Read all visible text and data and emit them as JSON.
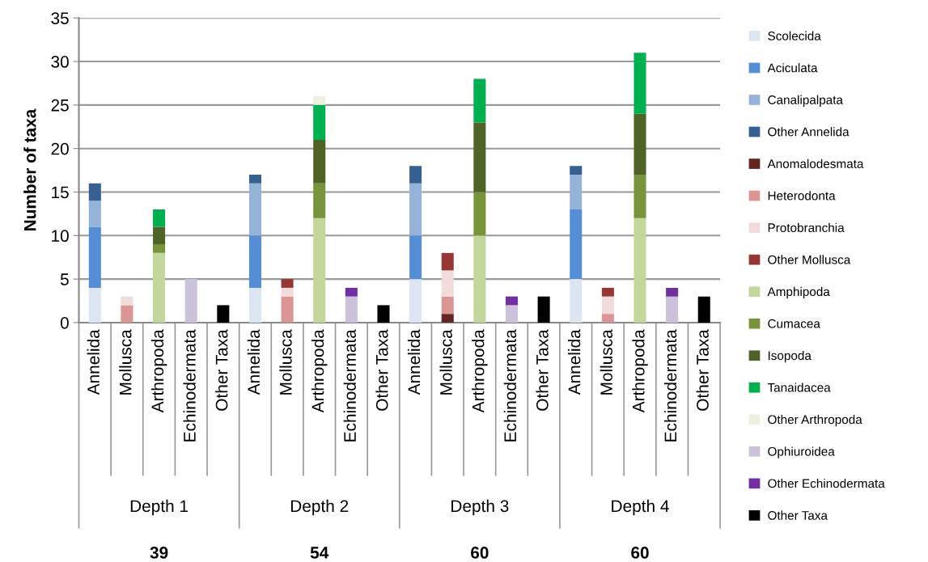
{
  "chart_data": {
    "type": "bar",
    "stacked": true,
    "ylabel": "Number of taxa",
    "categories": [
      "Annelida",
      "Mollusca",
      "Arthropoda",
      "Echinodermata",
      "Other Taxa",
      "Annelida",
      "Mollusca",
      "Arthropoda",
      "Echinodermata",
      "Other Taxa",
      "Annelida",
      "Mollusca",
      "Arthropoda",
      "Echinodermata",
      "Other Taxa",
      "Annelida",
      "Mollusca",
      "Arthropoda",
      "Echinodermata",
      "Other Taxa"
    ],
    "series": [
      {
        "name": "Scolecida",
        "color": "#dce6f2",
        "values": [
          4,
          null,
          null,
          null,
          null,
          4,
          null,
          null,
          null,
          null,
          5,
          null,
          null,
          null,
          null,
          5,
          null,
          null,
          null,
          null
        ]
      },
      {
        "name": "Aciculata",
        "color": "#558ed5",
        "values": [
          7,
          null,
          null,
          null,
          null,
          6,
          null,
          null,
          null,
          null,
          5,
          null,
          null,
          null,
          null,
          8,
          null,
          null,
          null,
          null
        ]
      },
      {
        "name": "Canalipalpata",
        "color": "#95b3d7",
        "values": [
          3,
          null,
          null,
          null,
          null,
          6,
          null,
          null,
          null,
          null,
          6,
          null,
          null,
          null,
          null,
          4,
          null,
          null,
          null,
          null
        ]
      },
      {
        "name": "Other Annelida",
        "color": "#376092",
        "values": [
          2,
          null,
          null,
          null,
          null,
          1,
          null,
          null,
          null,
          null,
          2,
          null,
          null,
          null,
          null,
          1,
          null,
          null,
          null,
          null
        ]
      },
      {
        "name": "Anomalodesmata",
        "color": "#632523",
        "values": [
          null,
          null,
          null,
          null,
          null,
          null,
          null,
          null,
          null,
          null,
          null,
          1,
          null,
          null,
          null,
          null,
          null,
          null,
          null,
          null
        ]
      },
      {
        "name": "Heterodonta",
        "color": "#d99694",
        "values": [
          null,
          2,
          null,
          null,
          null,
          null,
          3,
          null,
          null,
          null,
          null,
          2,
          null,
          null,
          null,
          null,
          1,
          null,
          null,
          null
        ]
      },
      {
        "name": "Protobranchia",
        "color": "#f2dcdb",
        "values": [
          null,
          1,
          null,
          null,
          null,
          null,
          1,
          null,
          null,
          null,
          null,
          3,
          null,
          null,
          null,
          null,
          2,
          null,
          null,
          null
        ]
      },
      {
        "name": "Other Mollusca",
        "color": "#953735",
        "values": [
          null,
          null,
          null,
          null,
          null,
          null,
          1,
          null,
          null,
          null,
          null,
          2,
          null,
          null,
          null,
          null,
          1,
          null,
          null,
          null
        ]
      },
      {
        "name": "Amphipoda",
        "color": "#c3d69b",
        "values": [
          null,
          null,
          8,
          null,
          null,
          null,
          null,
          12,
          null,
          null,
          null,
          null,
          10,
          null,
          null,
          null,
          null,
          12,
          null,
          null
        ]
      },
      {
        "name": "Cumacea",
        "color": "#77933c",
        "values": [
          null,
          null,
          1,
          null,
          null,
          null,
          null,
          4,
          null,
          null,
          null,
          null,
          5,
          null,
          null,
          null,
          null,
          5,
          null,
          null
        ]
      },
      {
        "name": "Isopoda",
        "color": "#4f6228",
        "values": [
          null,
          null,
          2,
          null,
          null,
          null,
          null,
          5,
          null,
          null,
          null,
          null,
          8,
          null,
          null,
          null,
          null,
          7,
          null,
          null
        ]
      },
      {
        "name": "Tanaidacea",
        "color": "#00b050",
        "values": [
          null,
          null,
          2,
          null,
          null,
          null,
          null,
          4,
          null,
          null,
          null,
          null,
          5,
          null,
          null,
          null,
          null,
          7,
          null,
          null
        ]
      },
      {
        "name": "Other Arthropoda",
        "color": "#ebf1de",
        "values": [
          null,
          null,
          null,
          null,
          null,
          null,
          null,
          1,
          null,
          null,
          null,
          null,
          null,
          null,
          null,
          null,
          null,
          null,
          null,
          null
        ]
      },
      {
        "name": "Ophiuroidea",
        "color": "#ccc1da",
        "values": [
          null,
          null,
          null,
          5,
          null,
          null,
          null,
          null,
          3,
          null,
          null,
          null,
          null,
          2,
          null,
          null,
          null,
          null,
          3,
          null
        ]
      },
      {
        "name": "Other Echinodermata",
        "color": "#7030a0",
        "values": [
          null,
          null,
          null,
          null,
          null,
          null,
          null,
          null,
          1,
          null,
          null,
          null,
          null,
          1,
          null,
          null,
          null,
          null,
          1,
          null
        ]
      },
      {
        "name": "Other Taxa",
        "color": "#000000",
        "values": [
          null,
          null,
          null,
          null,
          2,
          null,
          null,
          null,
          null,
          2,
          null,
          null,
          null,
          null,
          3,
          null,
          null,
          null,
          null,
          3
        ]
      }
    ],
    "ylim": [
      0,
      35
    ],
    "yticks": [
      0,
      5,
      10,
      15,
      20,
      25,
      30,
      35
    ],
    "grid": "y",
    "legend": "right",
    "annotations": [
      "Depth 1",
      "Depth 2",
      "Depth 3",
      "Depth 4",
      "39",
      "54",
      "60",
      "60"
    ]
  }
}
